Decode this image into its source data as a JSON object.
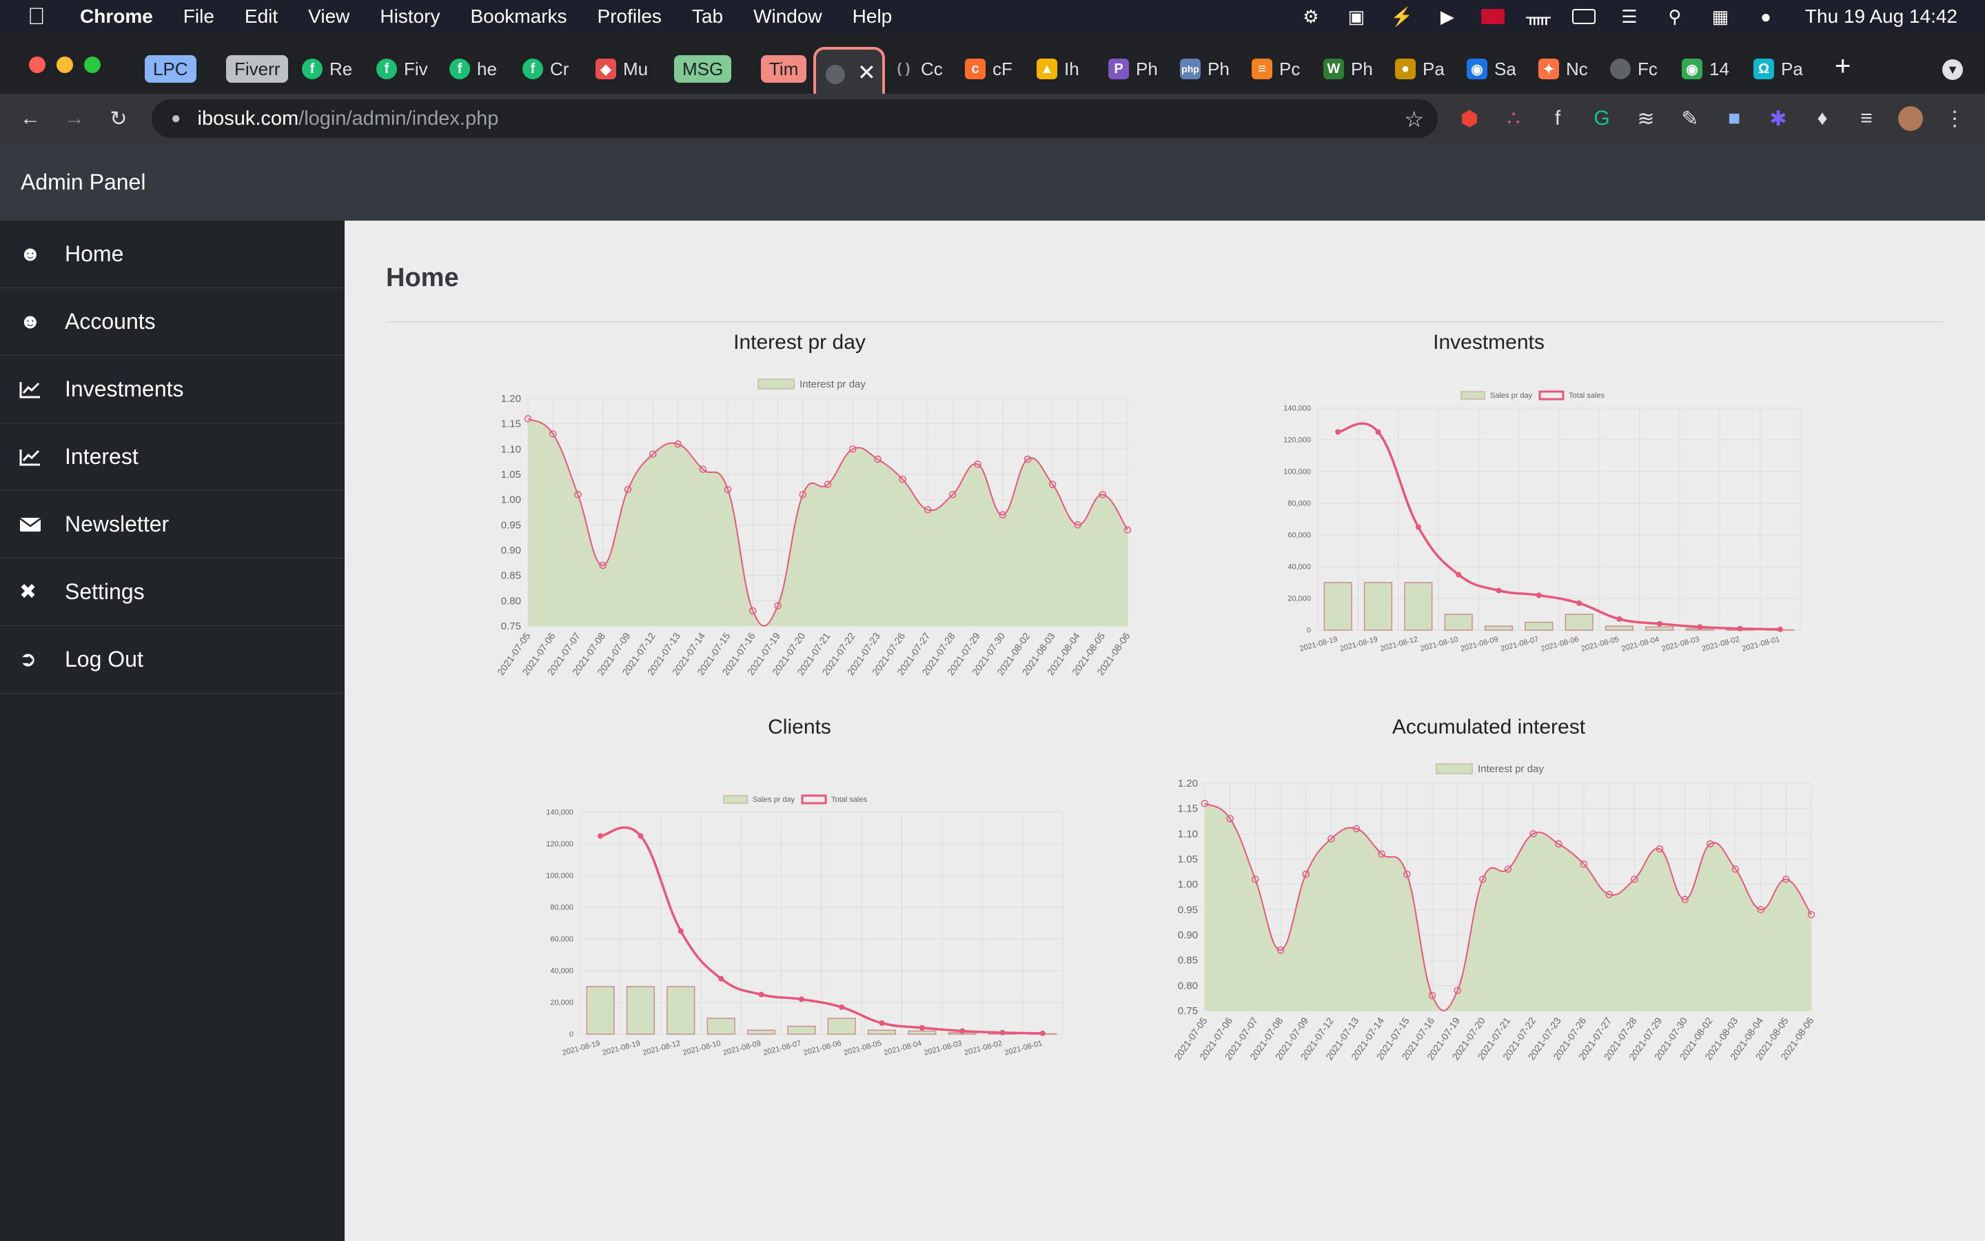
{
  "menubar": {
    "app": "Chrome",
    "items": [
      "File",
      "Edit",
      "View",
      "History",
      "Bookmarks",
      "Profiles",
      "Tab",
      "Window",
      "Help"
    ],
    "clock": "Thu 19 Aug  14:42"
  },
  "tabs": {
    "groups": [
      {
        "label": "LPC",
        "color": "#8ab4f8"
      },
      {
        "label": "Fiverr",
        "color": "#bdc1c6"
      },
      {
        "label": "MSG",
        "color": "#81c995"
      },
      {
        "label": "Tim",
        "color": "#f28b82"
      }
    ],
    "items": [
      "Re",
      "Fiv",
      "he",
      "Cr",
      "Mu",
      "Cc",
      "cF",
      "Ih",
      "Ph",
      "Ph",
      "Pc",
      "Ph",
      "Pa",
      "Sa",
      "Nc",
      "Fc",
      "14",
      "Pa"
    ]
  },
  "omnibox": {
    "host": "ibosuk.com",
    "path": "/login/admin/index.php"
  },
  "admin": {
    "brand": "Admin Panel",
    "nav": [
      {
        "label": "Home",
        "icon": "users-icon"
      },
      {
        "label": "Accounts",
        "icon": "users-icon"
      },
      {
        "label": "Investments",
        "icon": "chart-line-icon"
      },
      {
        "label": "Interest",
        "icon": "chart-line-icon"
      },
      {
        "label": "Newsletter",
        "icon": "envelope-icon"
      },
      {
        "label": "Settings",
        "icon": "tools-icon"
      },
      {
        "label": "Log Out",
        "icon": "sign-out-icon"
      }
    ],
    "page_title": "Home"
  },
  "colors": {
    "line": "#e8577a",
    "fill": "#d2dfc0",
    "fill_border": "#c9d6b4"
  },
  "chart_data": [
    {
      "type": "area",
      "title": "Interest pr day",
      "legend": [
        "Interest pr day"
      ],
      "legend_position": "top",
      "categories": [
        "2021-07-05",
        "2021-07-06",
        "2021-07-07",
        "2021-07-08",
        "2021-07-09",
        "2021-07-12",
        "2021-07-13",
        "2021-07-14",
        "2021-07-15",
        "2021-07-16",
        "2021-07-19",
        "2021-07-20",
        "2021-07-21",
        "2021-07-22",
        "2021-07-23",
        "2021-07-26",
        "2021-07-27",
        "2021-07-28",
        "2021-07-29",
        "2021-07-30",
        "2021-08-02",
        "2021-08-03",
        "2021-08-04",
        "2021-08-05",
        "2021-08-06"
      ],
      "values": [
        1.16,
        1.13,
        1.01,
        0.87,
        1.02,
        1.09,
        1.11,
        1.06,
        1.02,
        0.78,
        0.79,
        1.01,
        1.03,
        1.1,
        1.08,
        1.04,
        0.98,
        1.01,
        1.07,
        0.97,
        1.08,
        1.03,
        0.95,
        1.01,
        0.94
      ],
      "yticks": [
        "1.20",
        "1.15",
        "1.10",
        "1.05",
        "1.00",
        "0.95",
        "0.90",
        "0.85",
        "0.80",
        "0.75"
      ],
      "ylim": [
        0.75,
        1.2
      ],
      "grid": true
    },
    {
      "type": "bar+line",
      "title": "Investments",
      "legend": [
        "Sales pr day",
        "Total sales"
      ],
      "legend_position": "top",
      "categories": [
        "2021-08-19",
        "2021-08-19",
        "2021-08-12",
        "2021-08-10",
        "2021-08-09",
        "2021-08-07",
        "2021-08-06",
        "2021-08-05",
        "2021-08-04",
        "2021-08-03",
        "2021-08-02",
        "2021-08-01"
      ],
      "series": [
        {
          "name": "Sales pr day",
          "values": [
            30000,
            30000,
            30000,
            10000,
            2500,
            5000,
            10000,
            2500,
            2000,
            1000,
            500,
            200
          ]
        },
        {
          "name": "Total sales",
          "values": [
            125000,
            125000,
            65000,
            35000,
            25000,
            22000,
            17000,
            7000,
            4000,
            2000,
            1000,
            500
          ]
        }
      ],
      "yticks": [
        "140,000",
        "120,000",
        "100,000",
        "80,000",
        "60,000",
        "40,000",
        "20,000",
        "0"
      ],
      "ylim": [
        0,
        140000
      ],
      "grid": true
    },
    {
      "type": "bar+line",
      "title": "Clients",
      "legend": [
        "Sales pr day",
        "Total sales"
      ],
      "legend_position": "top",
      "categories": [
        "2021-08-19",
        "2021-08-19",
        "2021-08-12",
        "2021-08-10",
        "2021-08-09",
        "2021-08-07",
        "2021-08-06",
        "2021-08-05",
        "2021-08-04",
        "2021-08-03",
        "2021-08-02",
        "2021-08-01"
      ],
      "series": [
        {
          "name": "Sales pr day",
          "values": [
            30000,
            30000,
            30000,
            10000,
            2500,
            5000,
            10000,
            2500,
            2000,
            1000,
            500,
            200
          ]
        },
        {
          "name": "Total sales",
          "values": [
            125000,
            125000,
            65000,
            35000,
            25000,
            22000,
            17000,
            7000,
            4000,
            2000,
            1000,
            500
          ]
        }
      ],
      "yticks": [
        "140,000",
        "120,000",
        "100,000",
        "80,000",
        "60,000",
        "40,000",
        "20,000",
        "0"
      ],
      "ylim": [
        0,
        140000
      ],
      "grid": true
    },
    {
      "type": "area",
      "title": "Accumulated interest",
      "legend": [
        "Interest pr day"
      ],
      "legend_position": "top",
      "categories": [
        "2021-07-05",
        "2021-07-06",
        "2021-07-07",
        "2021-07-08",
        "2021-07-09",
        "2021-07-12",
        "2021-07-13",
        "2021-07-14",
        "2021-07-15",
        "2021-07-16",
        "2021-07-19",
        "2021-07-20",
        "2021-07-21",
        "2021-07-22",
        "2021-07-23",
        "2021-07-26",
        "2021-07-27",
        "2021-07-28",
        "2021-07-29",
        "2021-07-30",
        "2021-08-02",
        "2021-08-03",
        "2021-08-04",
        "2021-08-05",
        "2021-08-06"
      ],
      "values": [
        1.16,
        1.13,
        1.01,
        0.87,
        1.02,
        1.09,
        1.11,
        1.06,
        1.02,
        0.78,
        0.79,
        1.01,
        1.03,
        1.1,
        1.08,
        1.04,
        0.98,
        1.01,
        1.07,
        0.97,
        1.08,
        1.03,
        0.95,
        1.01,
        0.94
      ],
      "yticks": [
        "1.20",
        "1.15",
        "1.10",
        "1.05",
        "1.00",
        "0.95",
        "0.90",
        "0.85",
        "0.80",
        "0.75"
      ],
      "ylim": [
        0.75,
        1.2
      ],
      "grid": true
    }
  ]
}
